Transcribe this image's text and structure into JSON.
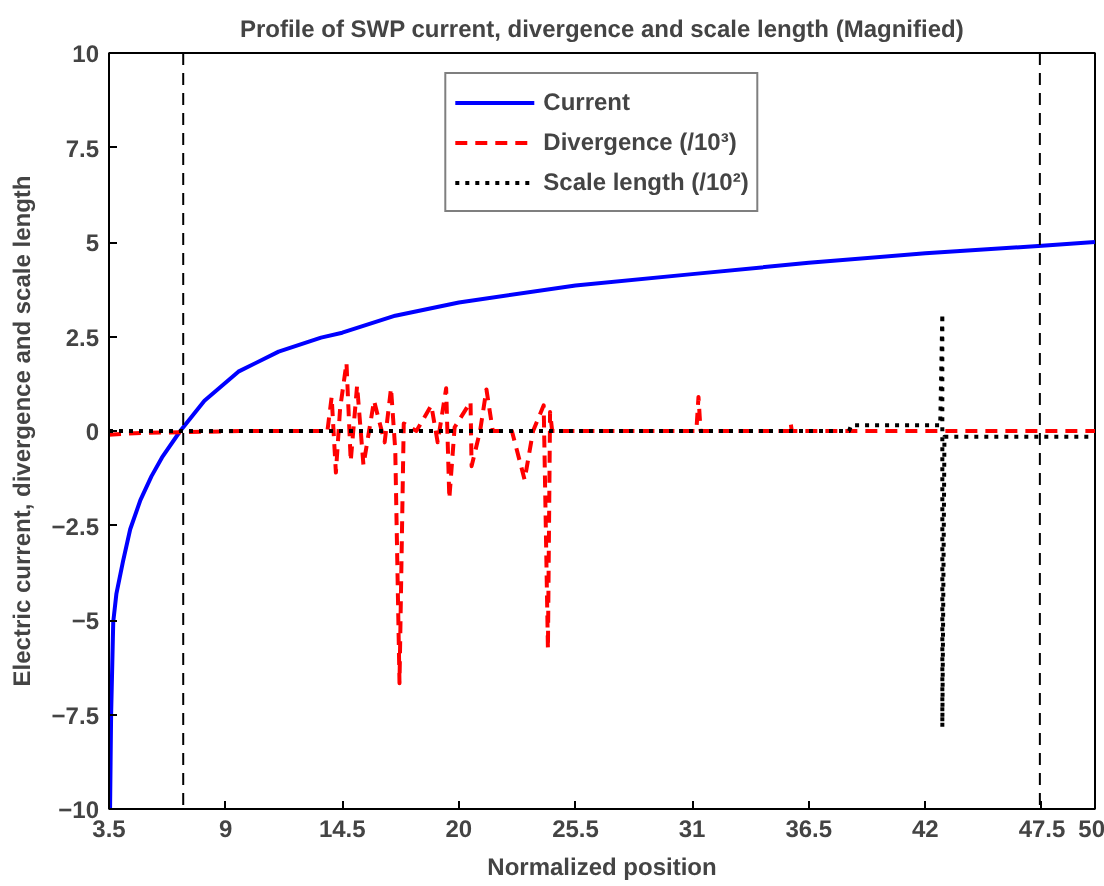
{
  "chart_data": {
    "type": "line",
    "title": "Profile of SWP current, divergence and scale length (Magnified)",
    "xlabel": "Normalized position",
    "ylabel": "Electric current, divergence and scale length",
    "xlim": [
      3.5,
      50
    ],
    "ylim": [
      -10,
      10
    ],
    "xticks": [
      3.5,
      9,
      14.5,
      20,
      25.5,
      31,
      36.5,
      42,
      47.5,
      50
    ],
    "yticks": [
      -10,
      -7.5,
      -5,
      -2.5,
      0,
      2.5,
      5,
      7.5,
      10
    ],
    "grid": false,
    "legend": "top",
    "marker": "none",
    "series": [
      {
        "name": "Current",
        "color": "#0000ff",
        "line_style": "solid",
        "x": [
          3.55,
          3.6,
          3.7,
          3.85,
          4.16,
          4.5,
          4.98,
          5.5,
          6.0,
          6.86,
          8.0,
          9.6,
          11.5,
          13.5,
          14.5,
          17,
          20,
          25.5,
          31,
          36.5,
          42,
          47.5,
          50
        ],
        "values": [
          -10,
          -7.5,
          -5.05,
          -4.3,
          -3.45,
          -2.6,
          -1.83,
          -1.2,
          -0.7,
          0,
          0.8,
          1.57,
          2.1,
          2.47,
          2.6,
          3.05,
          3.4,
          3.85,
          4.15,
          4.45,
          4.7,
          4.9,
          5.0
        ]
      },
      {
        "name": "Divergence (/10³)",
        "color": "#ff0000",
        "line_style": "dashed",
        "x": [
          3.5,
          5,
          10,
          13.8,
          14.0,
          14.2,
          14.4,
          14.7,
          14.9,
          15.2,
          15.5,
          16.0,
          16.5,
          16.8,
          17.0,
          17.2,
          17.4,
          18.0,
          18.7,
          19.0,
          19.4,
          19.55,
          19.8,
          20.55,
          20.6,
          21.0,
          21.3,
          21.6,
          22.5,
          23.1,
          23.5,
          24.0,
          24.2,
          24.3,
          24.4,
          25.5,
          31.2,
          31.3,
          31.4,
          35.6,
          35.65,
          35.7,
          50
        ],
        "values": [
          -0.1,
          -0.05,
          0,
          0,
          0.9,
          -1.1,
          0.6,
          1.8,
          -0.8,
          1.2,
          -0.9,
          0.8,
          -0.3,
          1.13,
          -0.5,
          -6.67,
          0.2,
          0,
          0.68,
          -0.3,
          1.13,
          -1.79,
          0.1,
          0.77,
          -0.93,
          0,
          1.1,
          0,
          0,
          -1.29,
          0,
          0.68,
          -5.77,
          0.5,
          0,
          0,
          0,
          0.9,
          0,
          0,
          0.2,
          0,
          0
        ]
      },
      {
        "name": "Scale length (/10²)",
        "color": "#000000",
        "line_style": "dotted",
        "x": [
          3.5,
          38.4,
          38.5,
          42.7,
          42.8,
          42.8,
          42.9,
          50
        ],
        "values": [
          0,
          0,
          0.15,
          0.15,
          3.1,
          -7.83,
          -0.15,
          -0.15
        ]
      }
    ],
    "ref_lines": [
      {
        "axis": "x",
        "value": 7.0,
        "label": null,
        "color": "#000000",
        "line_style": "dashed"
      },
      {
        "axis": "x",
        "value": 47.4,
        "label": null,
        "color": "#000000",
        "line_style": "dashed"
      }
    ]
  }
}
